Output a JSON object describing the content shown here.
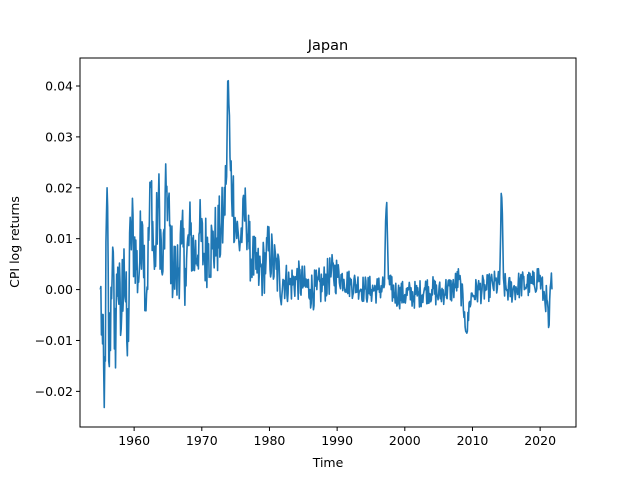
{
  "chart_data": {
    "type": "line",
    "title": "Japan",
    "xlabel": "Time",
    "ylabel": "CPI log returns",
    "xlim": [
      1952.0,
      2025.3
    ],
    "ylim": [
      -0.027,
      0.0455
    ],
    "xticks": [
      1960,
      1970,
      1980,
      1990,
      2000,
      2010,
      2020
    ],
    "xtick_labels": [
      "1960",
      "1970",
      "1980",
      "1990",
      "2000",
      "2010",
      "2020"
    ],
    "yticks": [
      -0.02,
      -0.01,
      0.0,
      0.01,
      0.02,
      0.03,
      0.04
    ],
    "ytick_labels": [
      "−0.02",
      "−0.01",
      "0.00",
      "0.01",
      "0.02",
      "0.03",
      "0.04"
    ],
    "grid": false,
    "color": "#1f77b4",
    "series": [
      {
        "x_start": 1955.0,
        "x_step": 0.08333,
        "anchors": [
          [
            1955.0,
            0.0
          ],
          [
            1955.3,
            -0.009
          ],
          [
            1955.6,
            -0.024
          ],
          [
            1956.0,
            0.02
          ],
          [
            1956.3,
            -0.017
          ],
          [
            1956.8,
            0.011
          ],
          [
            1957.1,
            -0.013
          ],
          [
            1957.6,
            0.005
          ],
          [
            1958.0,
            -0.009
          ],
          [
            1958.5,
            0.008
          ],
          [
            1959.0,
            -0.013
          ],
          [
            1959.5,
            0.012
          ],
          [
            1960.0,
            0.01
          ],
          [
            1960.6,
            0.002
          ],
          [
            1961.2,
            0.014
          ],
          [
            1961.8,
            -0.002
          ],
          [
            1962.5,
            0.021
          ],
          [
            1963.0,
            0.004
          ],
          [
            1963.6,
            0.018
          ],
          [
            1964.2,
            0.002
          ],
          [
            1964.8,
            0.021
          ],
          [
            1965.5,
            0.006
          ],
          [
            1966.2,
            0.002
          ],
          [
            1967.0,
            0.009
          ],
          [
            1967.6,
            0.004
          ],
          [
            1968.3,
            0.011
          ],
          [
            1969.0,
            0.006
          ],
          [
            1969.6,
            0.011
          ],
          [
            1970.3,
            0.007
          ],
          [
            1971.0,
            0.009
          ],
          [
            1971.6,
            0.008
          ],
          [
            1972.2,
            0.01
          ],
          [
            1972.8,
            0.011
          ],
          [
            1973.2,
            0.014
          ],
          [
            1973.6,
            0.021
          ],
          [
            1973.9,
            0.042
          ],
          [
            1974.2,
            0.024
          ],
          [
            1974.6,
            0.019
          ],
          [
            1975.0,
            0.013
          ],
          [
            1975.5,
            0.009
          ],
          [
            1976.0,
            0.012
          ],
          [
            1976.5,
            0.016
          ],
          [
            1977.0,
            0.008
          ],
          [
            1977.5,
            0.006
          ],
          [
            1978.0,
            0.004
          ],
          [
            1978.5,
            0.003
          ],
          [
            1979.0,
            0.004
          ],
          [
            1979.5,
            0.006
          ],
          [
            1980.0,
            0.008
          ],
          [
            1980.5,
            0.005
          ],
          [
            1981.0,
            0.004
          ],
          [
            1981.5,
            0.002
          ],
          [
            1982.0,
            0.002
          ],
          [
            1983.0,
            0.001
          ],
          [
            1984.0,
            0.002
          ],
          [
            1985.0,
            0.001
          ],
          [
            1986.0,
            0.0
          ],
          [
            1987.0,
            0.0
          ],
          [
            1988.0,
            0.001
          ],
          [
            1989.0,
            0.003
          ],
          [
            1990.0,
            0.003
          ],
          [
            1991.0,
            0.002
          ],
          [
            1992.0,
            0.001
          ],
          [
            1993.0,
            0.001
          ],
          [
            1994.0,
            0.0
          ],
          [
            1995.0,
            0.0
          ],
          [
            1996.0,
            0.0
          ],
          [
            1997.0,
            0.001
          ],
          [
            1997.3,
            0.019
          ],
          [
            1997.6,
            0.001
          ],
          [
            1998.0,
            0.0
          ],
          [
            1999.0,
            -0.001
          ],
          [
            2000.0,
            -0.001
          ],
          [
            2001.0,
            -0.001
          ],
          [
            2002.0,
            -0.001
          ],
          [
            2003.0,
            0.0
          ],
          [
            2004.0,
            0.0
          ],
          [
            2005.0,
            -0.001
          ],
          [
            2006.0,
            0.0
          ],
          [
            2007.0,
            0.0
          ],
          [
            2008.0,
            0.002
          ],
          [
            2008.8,
            -0.004
          ],
          [
            2009.2,
            -0.009
          ],
          [
            2009.6,
            -0.002
          ],
          [
            2010.0,
            -0.001
          ],
          [
            2011.0,
            0.0
          ],
          [
            2012.0,
            0.0
          ],
          [
            2013.0,
            0.001
          ],
          [
            2014.0,
            0.001
          ],
          [
            2014.3,
            0.02
          ],
          [
            2014.6,
            0.001
          ],
          [
            2015.0,
            0.0
          ],
          [
            2016.0,
            0.0
          ],
          [
            2017.0,
            0.001
          ],
          [
            2018.0,
            0.001
          ],
          [
            2019.0,
            0.001
          ],
          [
            2019.8,
            0.003
          ],
          [
            2020.5,
            -0.001
          ],
          [
            2021.0,
            -0.002
          ],
          [
            2021.3,
            -0.008
          ],
          [
            2021.6,
            0.002
          ],
          [
            2021.75,
            0.0
          ]
        ]
      }
    ]
  }
}
